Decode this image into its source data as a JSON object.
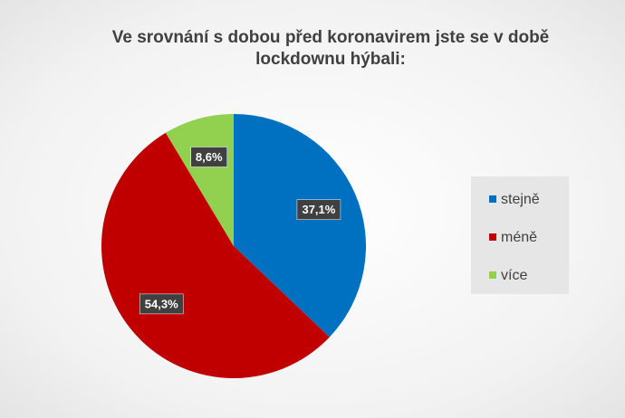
{
  "chart_data": {
    "type": "pie",
    "title": "Ve srovnání s  dobou před koronavirem jste se v době lockdownu hýbali:",
    "categories": [
      "stejně",
      "méně",
      "více"
    ],
    "values": [
      37.1,
      54.3,
      8.6
    ],
    "value_labels": [
      "37,1%",
      "54,3%",
      "8,6%"
    ],
    "colors": [
      "#0070c0",
      "#c00000",
      "#92d050"
    ],
    "legend": "right"
  }
}
